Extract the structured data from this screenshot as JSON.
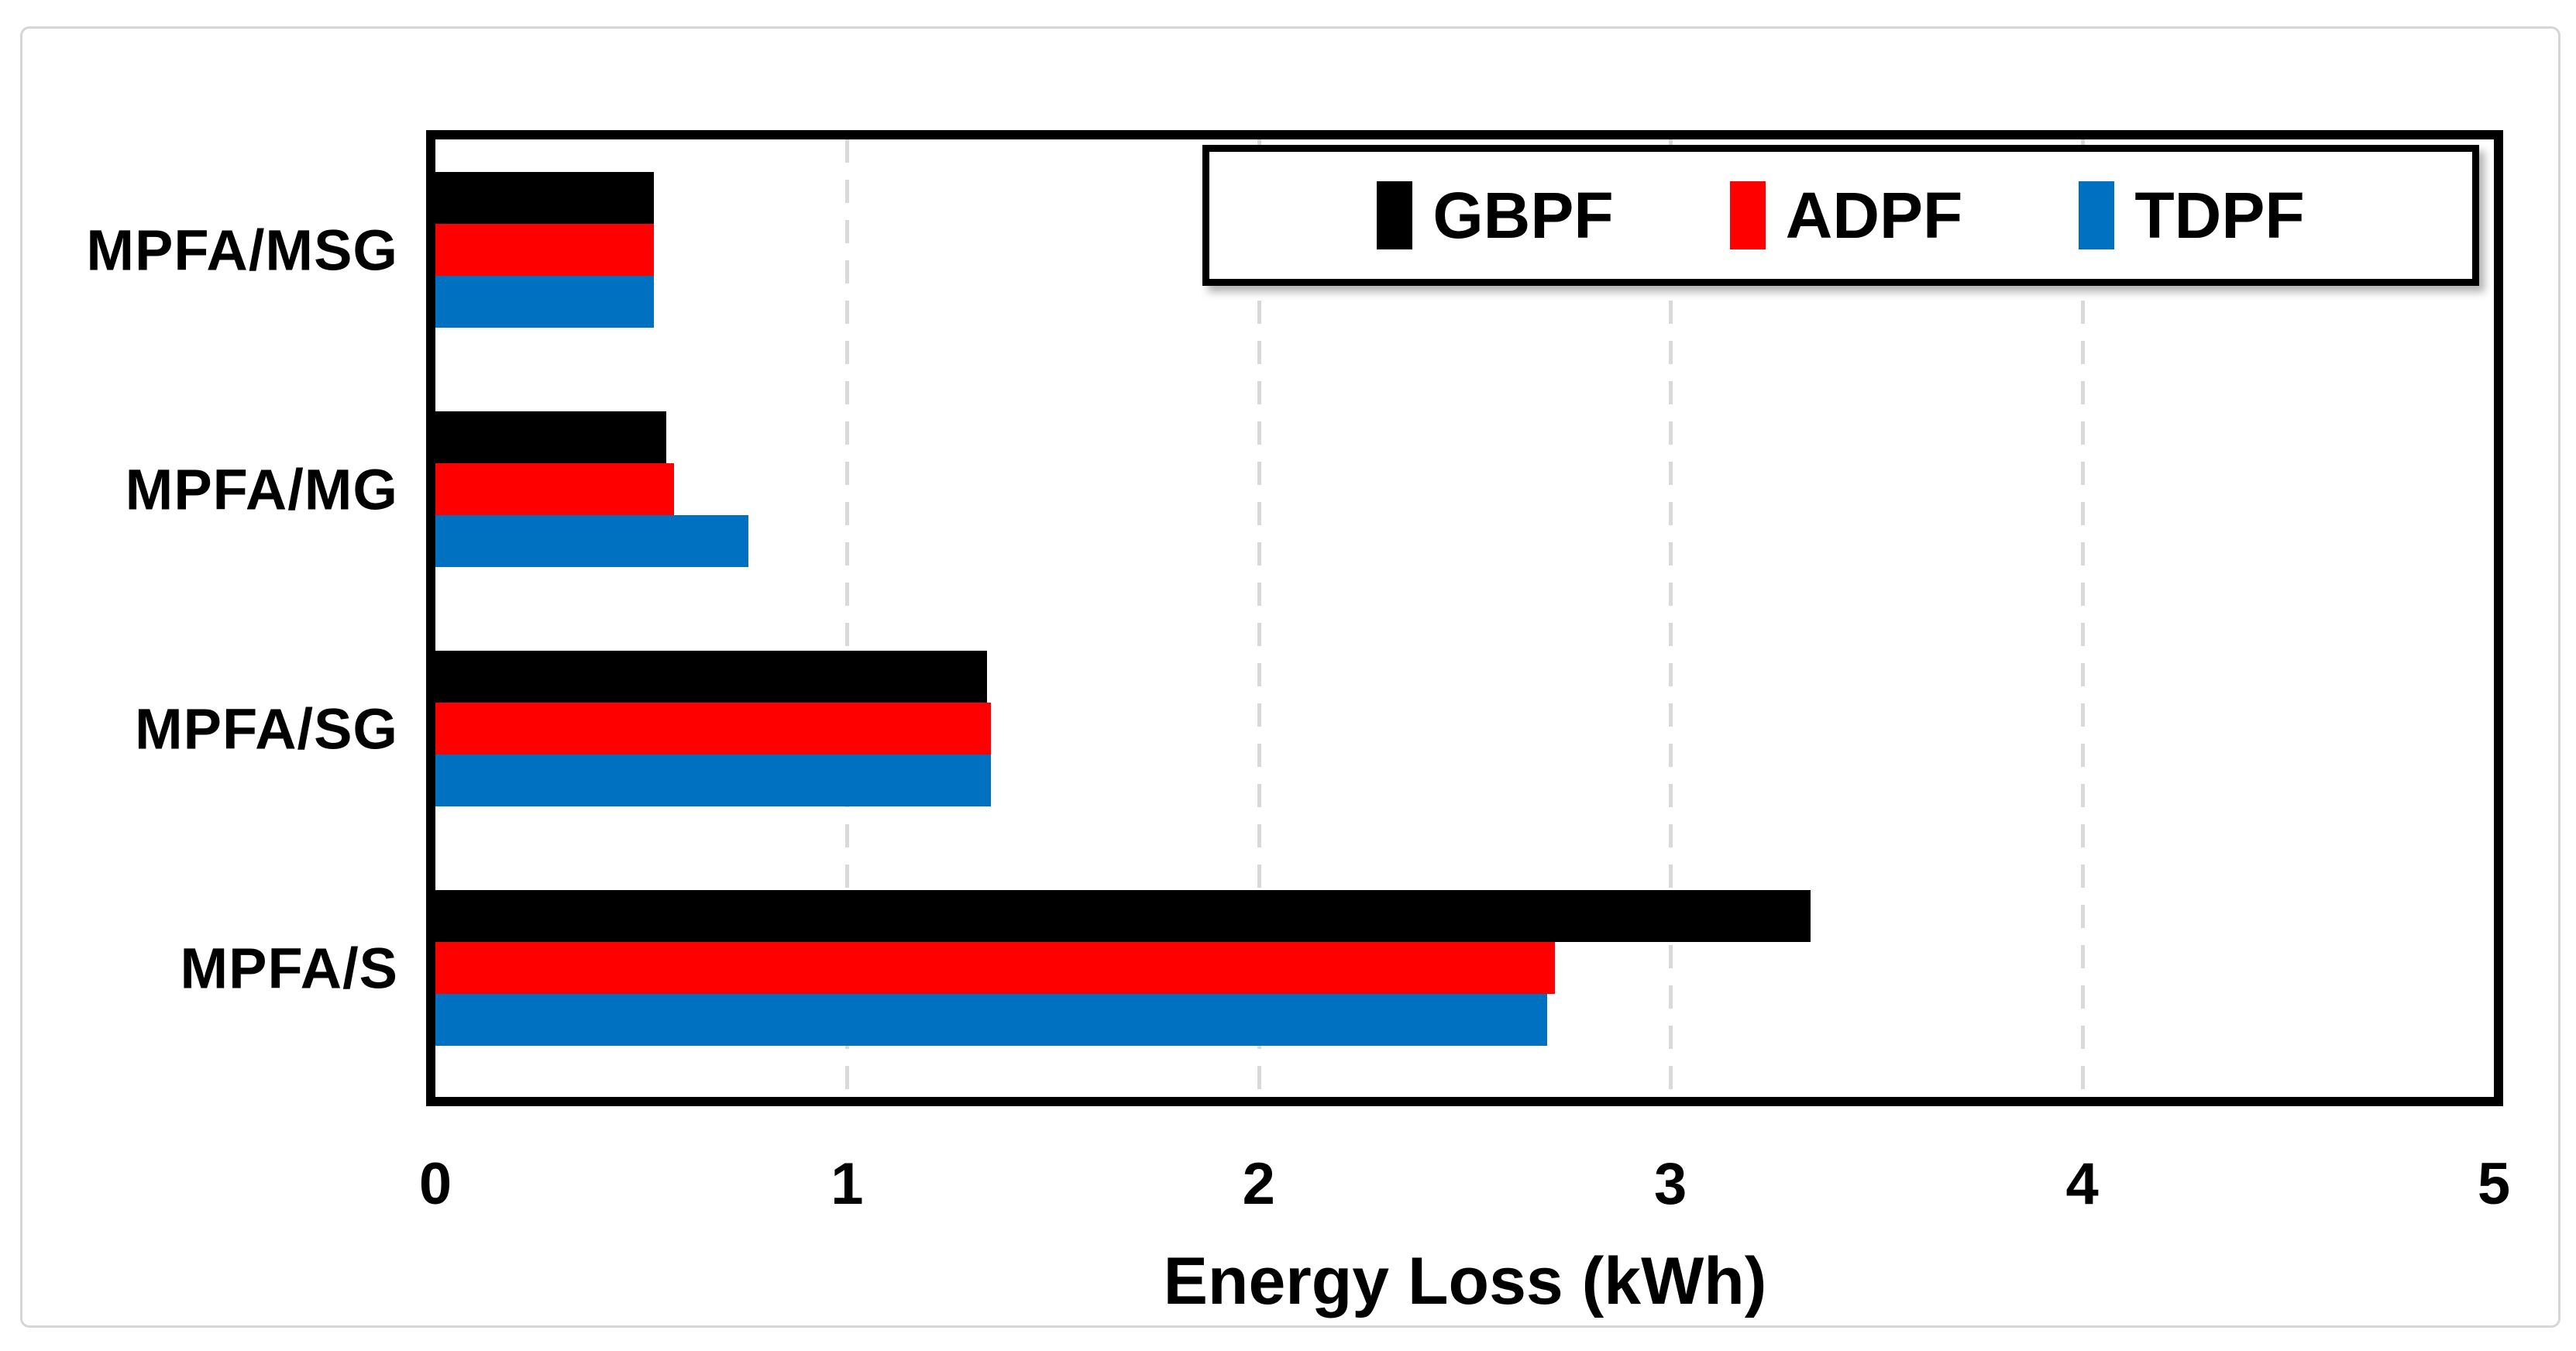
{
  "chart_data": {
    "type": "bar",
    "orientation": "horizontal",
    "title": "",
    "xlabel": "Energy Loss (kWh)",
    "ylabel": "",
    "xlim": [
      0,
      5
    ],
    "xticks": [
      0,
      1,
      2,
      3,
      4,
      5
    ],
    "grid": "vertical dashed gridlines at 1,2,3,4",
    "legend_position": "inside top-right, horizontal",
    "categories": [
      "MPFA/MSG",
      "MPFA/MG",
      "MPFA/SG",
      "MPFA/S"
    ],
    "series": [
      {
        "name": "GBPF",
        "color": "#000000",
        "values": [
          0.53,
          0.56,
          1.34,
          3.34
        ]
      },
      {
        "name": "ADPF",
        "color": "#FF0000",
        "values": [
          0.53,
          0.58,
          1.35,
          2.72
        ]
      },
      {
        "name": "TDPF",
        "color": "#0070C0",
        "values": [
          0.53,
          0.76,
          1.35,
          2.7
        ]
      }
    ],
    "colors": {
      "gridline": "#D9D9D9",
      "plot_border": "#000000",
      "card_border": "#D6D6D6",
      "background": "#FFFFFF",
      "text": "#000000"
    }
  }
}
